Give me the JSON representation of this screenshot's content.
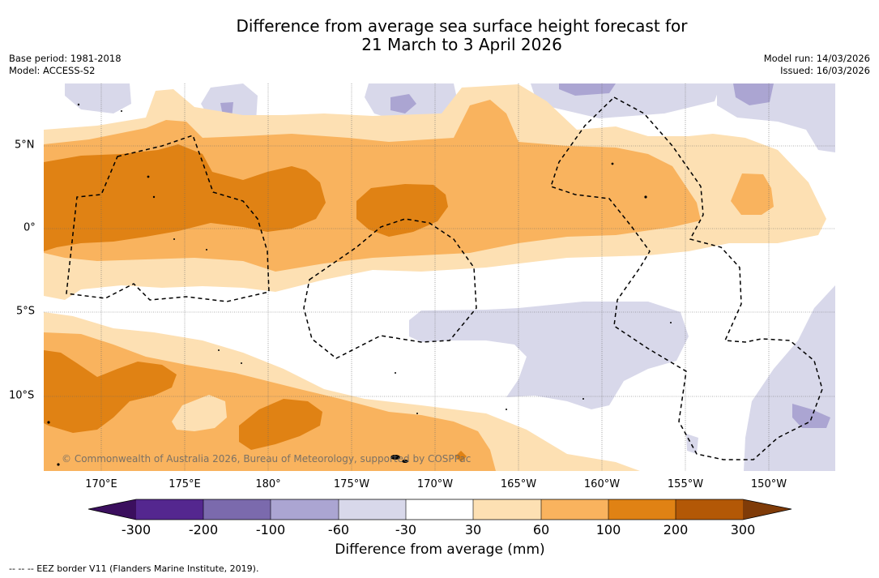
{
  "title": {
    "line1": "Difference from average sea surface height forecast for",
    "line2": "21 March to 3 April 2026"
  },
  "meta_left": {
    "base_period": "Base period: 1981-2018",
    "model": "Model: ACCESS-S2"
  },
  "meta_right": {
    "model_run": "Model run: 14/03/2026",
    "issued": "Issued: 16/03/2026"
  },
  "map": {
    "longitude_labels": [
      "170°E",
      "175°E",
      "180°",
      "175°W",
      "170°W",
      "165°W",
      "160°W",
      "155°W",
      "150°W"
    ],
    "latitude_labels": [
      "5°N",
      "0°",
      "5°S",
      "10°S"
    ],
    "copyright": "© Commonwealth of Australia 2026, Bureau of Meteorology, supported by COSPPac"
  },
  "colorbar": {
    "tick_labels": [
      "-300",
      "-200",
      "-100",
      "-60",
      "-30",
      "30",
      "60",
      "100",
      "200",
      "300"
    ],
    "colors": {
      "below_min": "#3b0f5e",
      "m300_m200": "#54278f",
      "m200_m100": "#7b6aad",
      "m100_m60": "#aba5d2",
      "m60_m30": "#d8d8ea",
      "m30_30": "#ffffff",
      "p30_60": "#fde0b3",
      "p60_100": "#f9b35e",
      "p100_200": "#e08214",
      "p200_300": "#b35806",
      "above_max": "#7f3b08"
    },
    "title": "Difference from average (mm)"
  },
  "footnote": "--  --  -- EEZ border V11 (Flanders Marine Institute, 2019)."
}
